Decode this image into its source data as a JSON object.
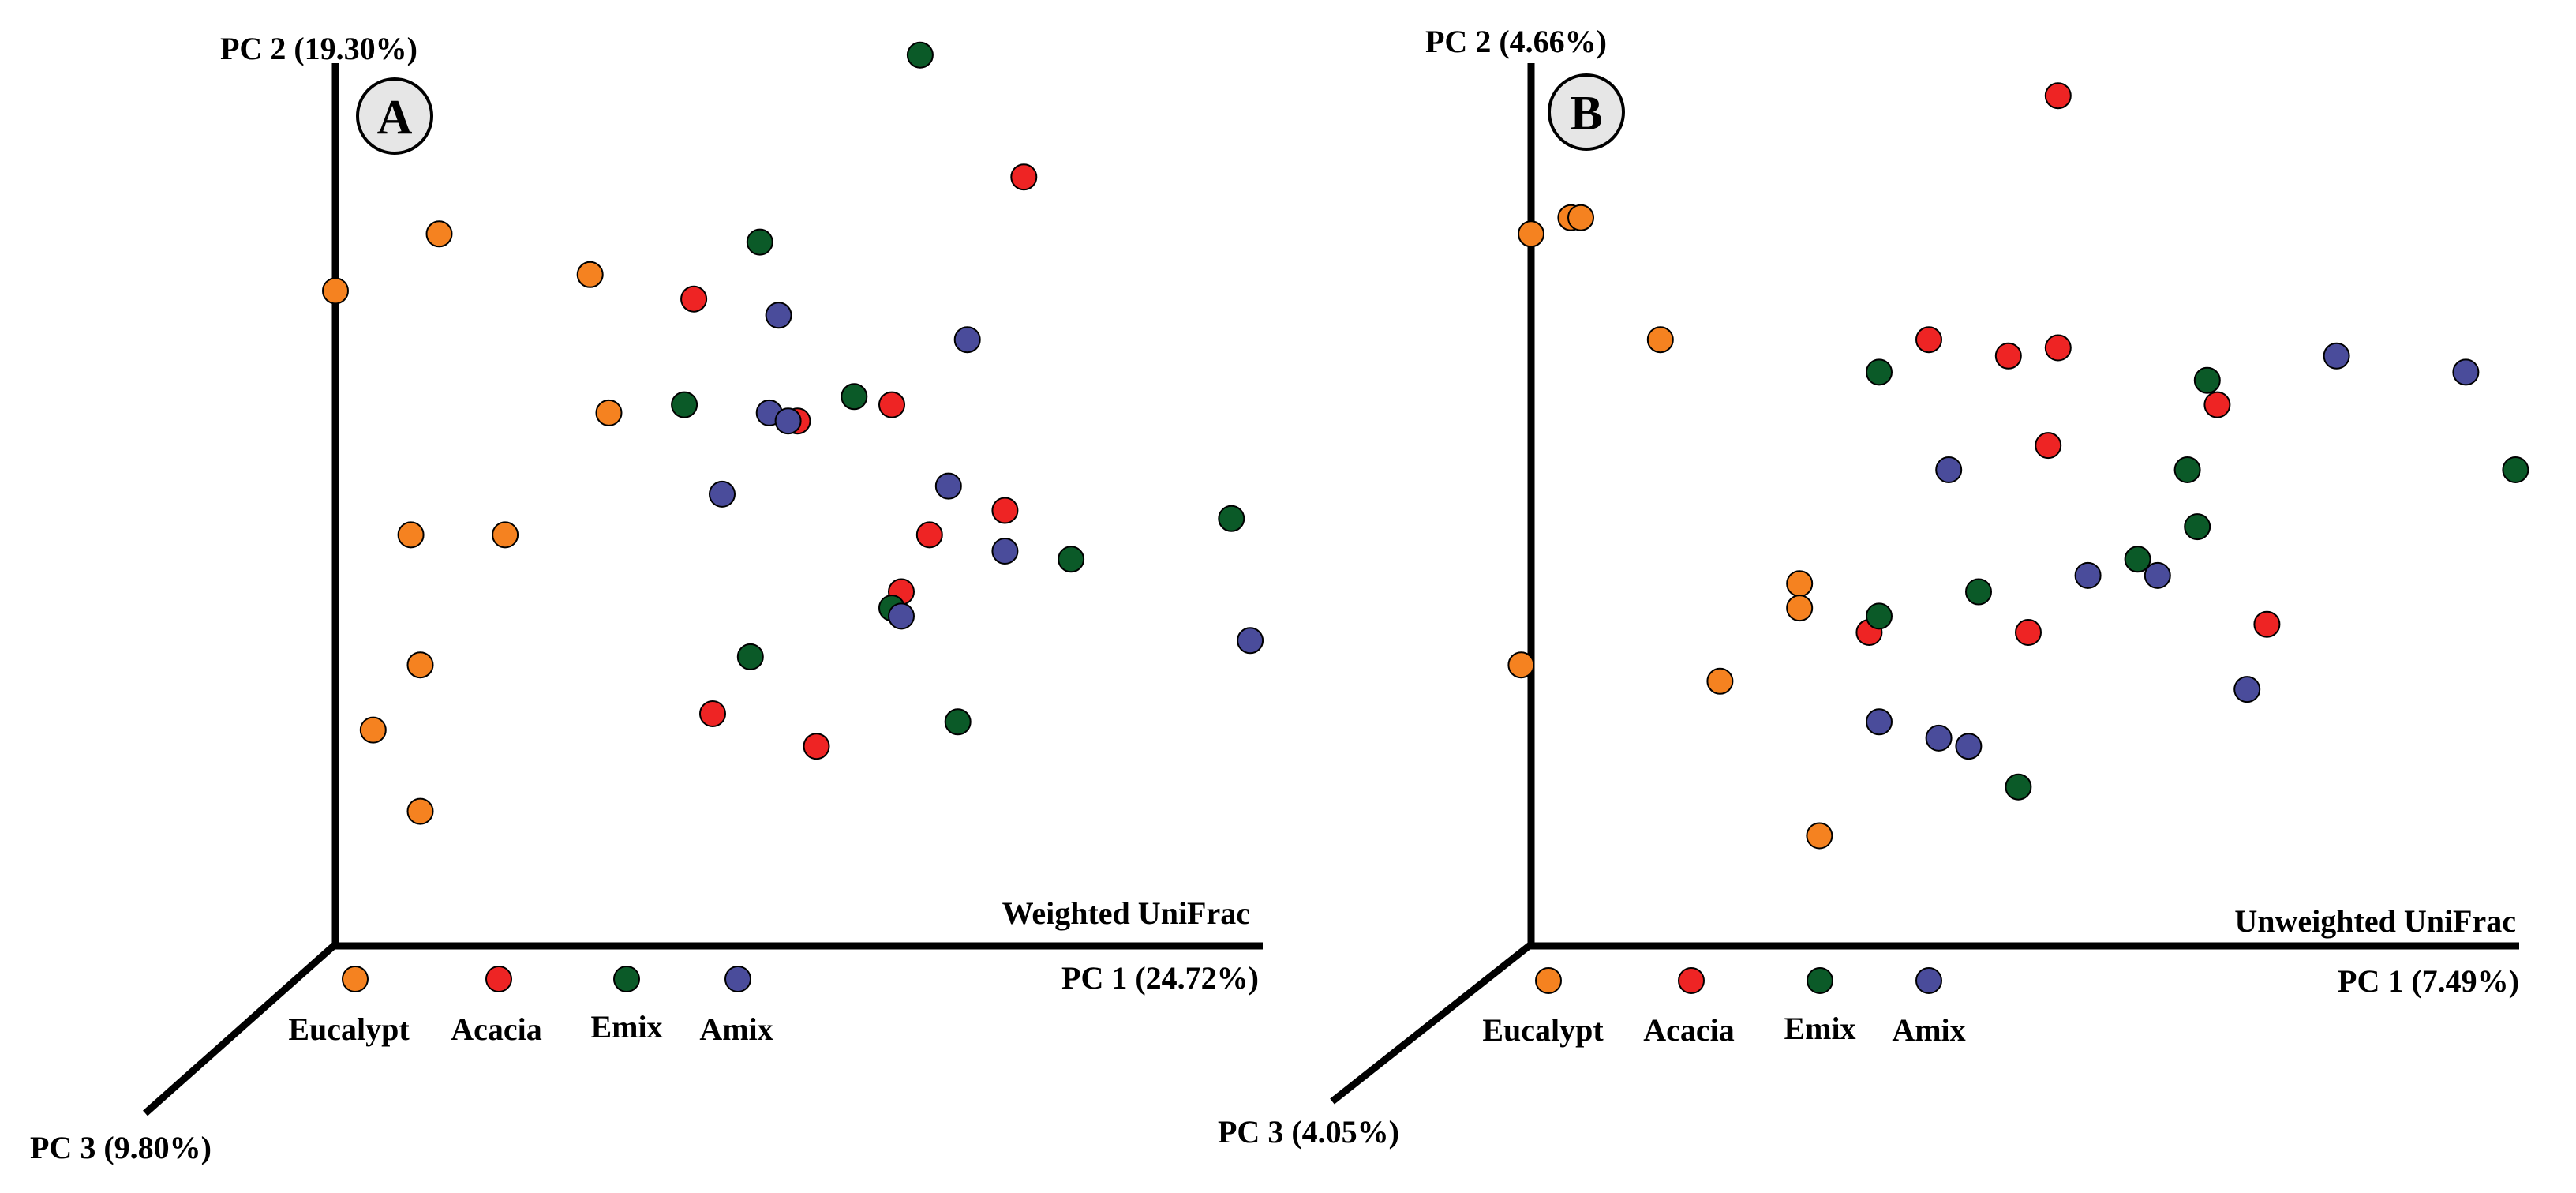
{
  "colors": {
    "Eucalypt": "#f58220",
    "Acacia": "#ee2424",
    "Emix": "#0b5a28",
    "Amix": "#4a4c9b",
    "badge_fill": "#e6e6e6",
    "axis": "#000000"
  },
  "legend": [
    "Eucalypt",
    "Acacia",
    "Emix",
    "Amix"
  ],
  "chart_data": [
    {
      "type": "scatter",
      "panel": "A",
      "title": "Weighted UniFrac",
      "xlabel": "PC 1 (24.72%)",
      "ylabel": "PC 2 (19.30%)",
      "zlabel": "PC 3 (9.80%)",
      "xlim": [
        0,
        100
      ],
      "ylim": [
        0,
        100
      ],
      "series": [
        {
          "name": "Eucalypt",
          "points": [
            [
              0,
              72
            ],
            [
              11,
              79
            ],
            [
              27,
              74
            ],
            [
              29,
              57
            ],
            [
              8,
              42
            ],
            [
              18,
              42
            ],
            [
              9,
              26
            ],
            [
              4,
              18
            ],
            [
              9,
              8
            ]
          ]
        },
        {
          "name": "Acacia",
          "points": [
            [
              38,
              71
            ],
            [
              59,
              58
            ],
            [
              49,
              56
            ],
            [
              73,
              86
            ],
            [
              71,
              45
            ],
            [
              63,
              42
            ],
            [
              60,
              35
            ],
            [
              40,
              20
            ],
            [
              51,
              16
            ]
          ]
        },
        {
          "name": "Emix",
          "points": [
            [
              62,
              101
            ],
            [
              45,
              78
            ],
            [
              37,
              58
            ],
            [
              55,
              59
            ],
            [
              95,
              44
            ],
            [
              78,
              39
            ],
            [
              59,
              33
            ],
            [
              44,
              27
            ],
            [
              66,
              19
            ]
          ]
        },
        {
          "name": "Amix",
          "points": [
            [
              47,
              69
            ],
            [
              67,
              66
            ],
            [
              46,
              57
            ],
            [
              48,
              56
            ],
            [
              41,
              47
            ],
            [
              65,
              48
            ],
            [
              71,
              40
            ],
            [
              60,
              32
            ],
            [
              97,
              29
            ]
          ]
        }
      ]
    },
    {
      "type": "scatter",
      "panel": "B",
      "title": "Unweighted UniFrac",
      "xlabel": "PC 1 (7.49%)",
      "ylabel": "PC 2 (4.66%)",
      "zlabel": "PC 3 (4.05%)",
      "xlim": [
        0,
        100
      ],
      "ylim": [
        0,
        100
      ],
      "series": [
        {
          "name": "Eucalypt",
          "points": [
            [
              0,
              79
            ],
            [
              4,
              81
            ],
            [
              5,
              81
            ],
            [
              13,
              66
            ],
            [
              27,
              36
            ],
            [
              27,
              33
            ],
            [
              -1,
              26
            ],
            [
              19,
              24
            ],
            [
              29,
              5
            ]
          ]
        },
        {
          "name": "Acacia",
          "points": [
            [
              53,
              96
            ],
            [
              40,
              66
            ],
            [
              48,
              64
            ],
            [
              53,
              65
            ],
            [
              69,
              58
            ],
            [
              52,
              53
            ],
            [
              34,
              30
            ],
            [
              50,
              30
            ],
            [
              74,
              31
            ]
          ]
        },
        {
          "name": "Emix",
          "points": [
            [
              35,
              62
            ],
            [
              68,
              61
            ],
            [
              66,
              50
            ],
            [
              99,
              50
            ],
            [
              67,
              43
            ],
            [
              61,
              39
            ],
            [
              45,
              35
            ],
            [
              35,
              32
            ],
            [
              49,
              11
            ]
          ]
        },
        {
          "name": "Amix",
          "points": [
            [
              81,
              64
            ],
            [
              94,
              62
            ],
            [
              42,
              50
            ],
            [
              56,
              37
            ],
            [
              63,
              37
            ],
            [
              72,
              23
            ],
            [
              35,
              19
            ],
            [
              41,
              17
            ],
            [
              44,
              16
            ]
          ]
        }
      ]
    }
  ]
}
